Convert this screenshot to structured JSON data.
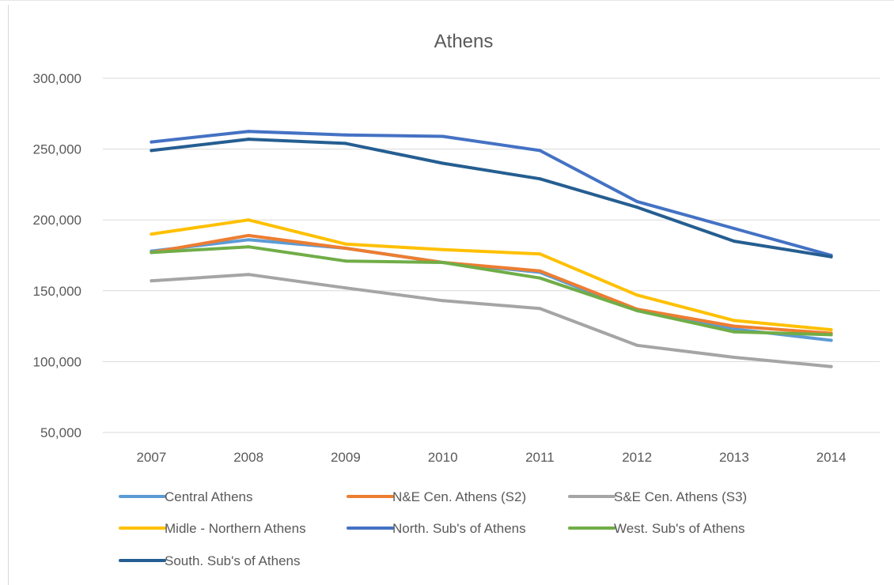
{
  "chart_data": {
    "type": "line",
    "title": "Athens",
    "xlabel": "",
    "ylabel": "",
    "categories": [
      "2007",
      "2008",
      "2009",
      "2010",
      "2011",
      "2012",
      "2013",
      "2014"
    ],
    "ylim": [
      50000,
      300000
    ],
    "yticks": [
      50000,
      100000,
      150000,
      200000,
      250000,
      300000
    ],
    "ytick_labels": [
      "50,000",
      "100,000",
      "150,000",
      "200,000",
      "250,000",
      "300,000"
    ],
    "grid": true,
    "legend_position": "bottom",
    "series": [
      {
        "name": "Central Athens",
        "color": "#5B9BD5",
        "values": [
          178000,
          186000,
          180000,
          170000,
          163000,
          136000,
          123000,
          115000
        ]
      },
      {
        "name": "N&E Cen. Athens (S2)",
        "color": "#ED7D31",
        "values": [
          177000,
          189000,
          180000,
          170000,
          164000,
          137000,
          125000,
          120000
        ]
      },
      {
        "name": "S&E Cen. Athens (S3)",
        "color": "#A5A5A5",
        "values": [
          157000,
          161500,
          152000,
          143000,
          137500,
          111500,
          103000,
          96500
        ]
      },
      {
        "name": "Midle - Northern Athens",
        "color": "#FFC000",
        "values": [
          190000,
          200000,
          183000,
          179000,
          176000,
          147000,
          129000,
          122500
        ]
      },
      {
        "name": "North. Sub's of Athens",
        "color": "#4472C4",
        "values": [
          255000,
          262500,
          260000,
          259000,
          249000,
          213000,
          194000,
          175000
        ]
      },
      {
        "name": "West. Sub's of Athens",
        "color": "#70AD47",
        "values": [
          177000,
          181000,
          171000,
          170000,
          159000,
          136000,
          121000,
          119000
        ]
      },
      {
        "name": "South. Sub's of Athens",
        "color": "#255E91",
        "values": [
          249000,
          257000,
          254000,
          240000,
          229000,
          209000,
          185000,
          174000
        ]
      }
    ]
  }
}
